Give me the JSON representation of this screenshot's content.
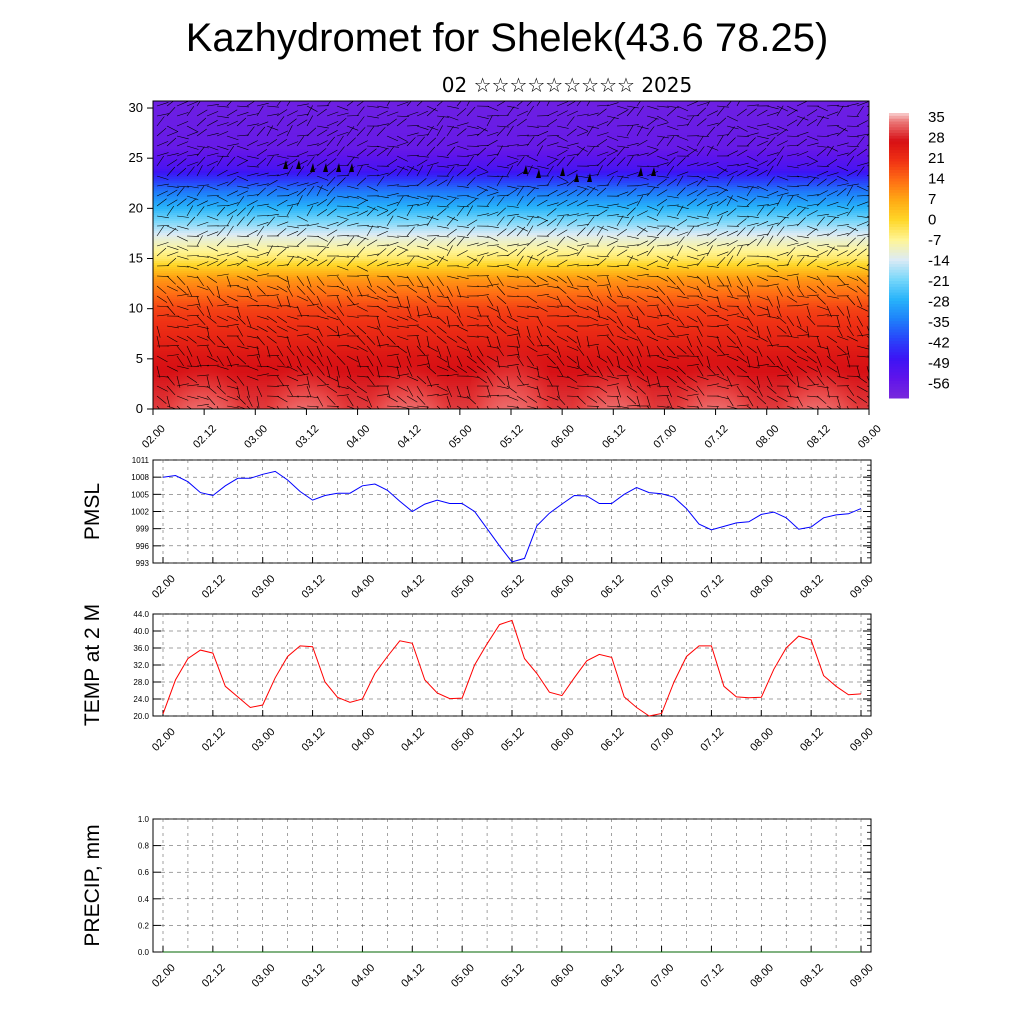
{
  "title": "Kazhydromet for Shelek(43.6 78.25)",
  "subtitle": "02 ☆☆☆☆☆☆☆☆☆ 2025",
  "chart_data": [
    {
      "type": "heatmap",
      "name": "temperature-cross-section",
      "xticks": [
        "02.00",
        "02.12",
        "03.00",
        "03.12",
        "04.00",
        "04.12",
        "05.00",
        "05.12",
        "06.00",
        "06.12",
        "07.00",
        "07.12",
        "08.00",
        "08.12",
        "09.00"
      ],
      "yticks": [
        "0",
        "5",
        "10",
        "15",
        "20",
        "25",
        "30"
      ],
      "ylim": [
        0,
        30.7
      ],
      "colorbar": {
        "labels": [
          "35",
          "28",
          "21",
          "14",
          "7",
          "0",
          "-7",
          "-14",
          "-21",
          "-28",
          "-35",
          "-42",
          "-49",
          "-56"
        ],
        "range": [
          -63,
          38
        ]
      },
      "day_maxima_x": [
        0.5,
        1.5,
        2.5,
        3.5,
        4.5,
        5.5,
        6.5
      ]
    },
    {
      "type": "line",
      "name": "pmsl",
      "ylabel": "PMSL",
      "yticks": [
        "1011",
        "1008",
        "1005",
        "1002",
        "999",
        "996",
        "993"
      ],
      "ylim": [
        993,
        1011
      ],
      "xticks": [
        "02.00",
        "02.12",
        "03.00",
        "03.12",
        "04.00",
        "04.12",
        "05.00",
        "05.12",
        "06.00",
        "06.12",
        "07.00",
        "07.12",
        "08.00",
        "08.12",
        "09.00"
      ],
      "color": "#0000ff",
      "values": [
        1008.0,
        1008.3,
        1007.2,
        1005.3,
        1004.8,
        1006.5,
        1007.8,
        1007.8,
        1008.5,
        1009.0,
        1007.5,
        1005.5,
        1004.0,
        1004.8,
        1005.2,
        1005.2,
        1006.5,
        1006.8,
        1005.7,
        1003.8,
        1002.0,
        1003.3,
        1004.0,
        1003.4,
        1003.4,
        1002.0,
        999.0,
        996.0,
        993.2,
        993.8,
        999.5,
        1001.7,
        1003.3,
        1004.8,
        1004.7,
        1003.4,
        1003.4,
        1005.0,
        1006.2,
        1005.3,
        1005.1,
        1004.5,
        1002.5,
        999.8,
        998.8,
        999.4,
        1000.0,
        1000.2,
        1001.5,
        1001.9,
        1000.9,
        998.9,
        999.3,
        1000.9,
        1001.4,
        1001.6,
        1002.5
      ]
    },
    {
      "type": "line",
      "name": "temp-2m",
      "ylabel": "TEMP at 2 M",
      "yticks": [
        "44.0",
        "40.0",
        "36.0",
        "32.0",
        "28.0",
        "24.0",
        "20.0"
      ],
      "ylim": [
        20,
        44
      ],
      "xticks": [
        "02.00",
        "02.12",
        "03.00",
        "03.12",
        "04.00",
        "04.12",
        "05.00",
        "05.12",
        "06.00",
        "06.12",
        "07.00",
        "07.12",
        "08.00",
        "08.12",
        "09.00"
      ],
      "color": "#ff0000",
      "values": [
        20.5,
        28.5,
        33.5,
        35.5,
        34.8,
        27.0,
        24.5,
        22.0,
        22.6,
        29.0,
        34.0,
        36.5,
        36.3,
        28.0,
        24.4,
        23.2,
        24.0,
        30.0,
        34.0,
        37.7,
        37.1,
        28.5,
        25.4,
        24.1,
        24.2,
        32.0,
        37.0,
        41.5,
        42.5,
        33.5,
        30.0,
        25.6,
        24.8,
        29.0,
        33.0,
        34.5,
        33.8,
        24.5,
        22.0,
        20.0,
        20.6,
        28.0,
        34.0,
        36.5,
        36.5,
        27.0,
        24.5,
        24.3,
        24.4,
        31.0,
        36.0,
        38.8,
        37.9,
        29.5,
        27.0,
        25.0,
        25.2
      ]
    },
    {
      "type": "line",
      "name": "precip",
      "ylabel": "PRECIP, mm",
      "yticks": [
        "1.0",
        "0.8",
        "0.6",
        "0.4",
        "0.2",
        "0.0"
      ],
      "ylim": [
        0,
        1
      ],
      "xticks": [
        "02.00",
        "02.12",
        "03.00",
        "03.12",
        "04.00",
        "04.12",
        "05.00",
        "05.12",
        "06.00",
        "06.12",
        "07.00",
        "07.12",
        "08.00",
        "08.12",
        "09.00"
      ],
      "color": "#006400",
      "values": [
        0,
        0,
        0,
        0,
        0,
        0,
        0,
        0,
        0,
        0,
        0,
        0,
        0,
        0,
        0,
        0,
        0,
        0,
        0,
        0,
        0,
        0,
        0,
        0,
        0,
        0,
        0,
        0,
        0,
        0,
        0,
        0,
        0,
        0,
        0,
        0,
        0,
        0,
        0,
        0,
        0,
        0,
        0,
        0,
        0,
        0,
        0,
        0,
        0,
        0,
        0,
        0,
        0,
        0,
        0,
        0,
        0
      ]
    }
  ]
}
